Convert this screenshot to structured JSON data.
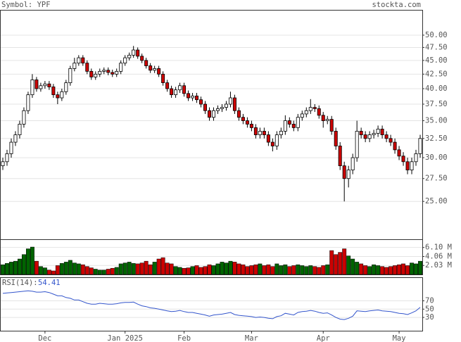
{
  "chart_data": {
    "type": "candlestick",
    "title": "Symbol: YPF",
    "source": "stockta.com",
    "log": true,
    "grid": true,
    "up_color": "#ffffff",
    "down_color": "#cc0000",
    "ylim": [
      21.35,
      55.4
    ],
    "yticks": [
      {
        "value": 25,
        "label": "25.00"
      },
      {
        "value": 27.5,
        "label": "27.50"
      },
      {
        "value": 30,
        "label": "30.00"
      },
      {
        "value": 32.5,
        "label": "32.50"
      },
      {
        "value": 35,
        "label": "35.00"
      },
      {
        "value": 37.5,
        "label": "37.50"
      },
      {
        "value": 40,
        "label": "40.00"
      },
      {
        "value": 42.5,
        "label": "42.50"
      },
      {
        "value": 45,
        "label": "45.00"
      },
      {
        "value": 47.5,
        "label": "47.50"
      },
      {
        "value": 50,
        "label": "50.00"
      }
    ],
    "xticks": [
      {
        "value": 10,
        "label": "Dec"
      },
      {
        "value": 29,
        "label": "Jan 2025"
      },
      {
        "value": 43,
        "label": "Feb"
      },
      {
        "value": 59,
        "label": "Mar"
      },
      {
        "value": 76,
        "label": "Apr"
      },
      {
        "value": 94,
        "label": "May"
      }
    ],
    "open": [
      29,
      29.5,
      30.5,
      32,
      33,
      34.5,
      36.5,
      39,
      41.5,
      40,
      40.5,
      40.8,
      40.3,
      39,
      38.5,
      39.5,
      41,
      43.5,
      44.5,
      45.5,
      44.5,
      43,
      42,
      42.5,
      43,
      43.2,
      42.8,
      42.5,
      43,
      44.5,
      45.5,
      46,
      47,
      45.8,
      45,
      44,
      43.2,
      43.5,
      42.5,
      41,
      40,
      39,
      39.8,
      40.5,
      39.2,
      38.5,
      38.8,
      38.2,
      37.5,
      36.5,
      35.5,
      36.5,
      36.8,
      37,
      37.5,
      38.5,
      36.5,
      35.5,
      35,
      34.5,
      34,
      33,
      33.5,
      33,
      32,
      31.5,
      33,
      33.5,
      35,
      34.5,
      34,
      35.5,
      36,
      36.5,
      37,
      36.8,
      35.8,
      35,
      35.2,
      33.5,
      31.5,
      29,
      27.5,
      28.5,
      30,
      33.5,
      33,
      32.5,
      33,
      33.2,
      33.8,
      33,
      32.5,
      32,
      31,
      30.2,
      29.5,
      28.5,
      29.5,
      30.5
    ],
    "high": [
      30,
      31,
      32.5,
      33.5,
      35,
      37,
      39.5,
      42.5,
      42,
      41,
      41.3,
      41.3,
      40.8,
      39.5,
      40,
      41.5,
      44,
      45.5,
      46,
      46,
      45,
      43.5,
      43,
      43.5,
      43.7,
      43.7,
      43.3,
      43.5,
      45,
      46,
      46.5,
      47.8,
      47.5,
      46.3,
      45.5,
      44.5,
      44,
      44,
      43,
      41.5,
      40.5,
      40.3,
      41,
      41,
      39.7,
      39.3,
      39.3,
      38.7,
      38,
      37,
      37,
      37.3,
      37.5,
      38,
      39.5,
      39,
      37,
      36,
      35.5,
      35,
      34.5,
      34,
      34,
      33.5,
      32.5,
      33.5,
      34,
      35.8,
      35.5,
      35,
      36,
      36.5,
      37,
      38.3,
      37.5,
      37.3,
      36.3,
      35.7,
      35.7,
      34,
      32,
      29.5,
      29,
      30.5,
      35,
      34,
      33.5,
      33.5,
      33.7,
      34.3,
      34.3,
      33.5,
      33,
      32.5,
      31.5,
      30.7,
      30,
      30,
      31,
      33
    ],
    "low": [
      28.5,
      29,
      30,
      31.5,
      32.5,
      34,
      36,
      38.5,
      39.5,
      39.5,
      40,
      39.8,
      38.5,
      37.5,
      38,
      39,
      40.5,
      43,
      44,
      44,
      42.5,
      41.5,
      41.5,
      42,
      42.5,
      42.3,
      42,
      42,
      42.5,
      44,
      45,
      45.5,
      45.3,
      44.5,
      43.5,
      42.7,
      42.7,
      42,
      40.5,
      39.5,
      38.5,
      38.5,
      39.3,
      38.7,
      38,
      38,
      37.7,
      37,
      36,
      35,
      35,
      36,
      36.3,
      36.5,
      37,
      36,
      35,
      34.5,
      34,
      33.5,
      32.5,
      32.5,
      32.5,
      31.5,
      30.8,
      31,
      32.5,
      33,
      34,
      33.5,
      33.5,
      35,
      35.5,
      36,
      36.3,
      35.3,
      34,
      34.5,
      33,
      31,
      28.5,
      25,
      26.5,
      28,
      29.5,
      32.5,
      32,
      32,
      32.5,
      32.7,
      32.5,
      32,
      31.5,
      30.5,
      29.7,
      29,
      28,
      28,
      29,
      30
    ],
    "close": [
      29.5,
      30.5,
      32,
      33,
      34.5,
      36.5,
      39,
      41.5,
      40,
      40.5,
      40.8,
      40.3,
      39,
      38.5,
      39.5,
      41,
      43.5,
      44.5,
      45.5,
      44.5,
      43,
      42,
      42.5,
      43,
      43.2,
      42.8,
      42.5,
      43,
      44.5,
      45.5,
      46,
      47,
      45.8,
      45,
      44,
      43.2,
      43.5,
      42.5,
      41,
      40,
      39,
      39.8,
      40.5,
      39.2,
      38.5,
      38.8,
      38.2,
      37.5,
      36.5,
      35.5,
      36.5,
      36.8,
      37,
      37.5,
      38.5,
      36.5,
      35.5,
      35,
      34.5,
      34,
      33,
      33.5,
      33,
      32,
      31.5,
      33,
      33.5,
      35,
      34.5,
      34,
      35.5,
      36,
      36.5,
      37,
      36.8,
      35.8,
      35,
      35.2,
      33.5,
      31.5,
      29,
      27.5,
      28.5,
      30,
      33.5,
      33,
      32.5,
      33,
      33.2,
      33.8,
      33,
      32.5,
      32,
      31,
      30.2,
      29.5,
      28.5,
      29.5,
      30.5,
      32.5
    ],
    "volume": {
      "up_color": "#006400",
      "down_color": "#cc0000",
      "ylim": [
        0,
        7.8
      ],
      "yticks": [
        {
          "value": 6.1,
          "label": "6.10 M"
        },
        {
          "value": 4.06,
          "label": "4.06 M"
        },
        {
          "value": 2.03,
          "label": "2.03 M"
        }
      ],
      "values": [
        2.2,
        2.5,
        2.8,
        3.0,
        3.5,
        4.5,
        5.8,
        6.2,
        3.0,
        1.8,
        1.5,
        1.0,
        0.8,
        2.0,
        2.5,
        2.8,
        3.2,
        2.6,
        2.4,
        2.2,
        1.8,
        1.5,
        1.2,
        1.0,
        1.0,
        1.2,
        1.4,
        1.6,
        2.4,
        2.6,
        2.8,
        2.5,
        2.4,
        2.6,
        3.0,
        2.2,
        2.8,
        3.5,
        3.8,
        2.6,
        2.4,
        1.8,
        1.6,
        1.4,
        1.5,
        1.8,
        2.0,
        1.6,
        1.8,
        2.2,
        2.0,
        2.4,
        2.8,
        2.6,
        3.0,
        2.8,
        2.4,
        2.2,
        1.8,
        2.0,
        2.2,
        2.4,
        2.0,
        2.2,
        1.8,
        2.4,
        2.0,
        2.2,
        1.8,
        2.0,
        2.2,
        2.0,
        1.8,
        2.0,
        1.8,
        1.6,
        2.0,
        2.2,
        5.4,
        4.5,
        5.0,
        5.8,
        4.2,
        3.5,
        2.8,
        2.4,
        2.0,
        1.8,
        2.2,
        2.0,
        1.8,
        1.6,
        1.8,
        2.0,
        2.2,
        2.4,
        2.0,
        2.6,
        2.4,
        3.0
      ]
    },
    "rsi": {
      "label": "RSI(14):",
      "color": "#3355cc",
      "ylim": [
        -2,
        125
      ],
      "yticks": [
        70,
        50,
        30
      ],
      "values": [
        88,
        89,
        90,
        91,
        92,
        93,
        94,
        93,
        91,
        91,
        92,
        90,
        86,
        82,
        82,
        78,
        76,
        72,
        72,
        68,
        64,
        62,
        62,
        64,
        63,
        62,
        62,
        63,
        65,
        66,
        66,
        67,
        62,
        58,
        56,
        53,
        52,
        50,
        48,
        46,
        44,
        45,
        47,
        44,
        42,
        42,
        40,
        38,
        36,
        33,
        36,
        37,
        38,
        40,
        42,
        37,
        35,
        34,
        33,
        32,
        30,
        31,
        30,
        28,
        27,
        32,
        34,
        40,
        38,
        36,
        42,
        44,
        45,
        47,
        45,
        42,
        40,
        41,
        36,
        30,
        26,
        25,
        28,
        33,
        46,
        45,
        44,
        46,
        47,
        48,
        46,
        45,
        44,
        42,
        40,
        39,
        37,
        41,
        46,
        54.41
      ]
    }
  }
}
